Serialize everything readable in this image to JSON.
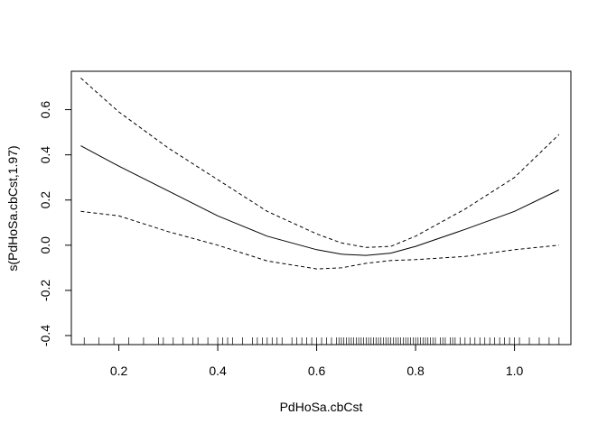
{
  "chart_data": {
    "type": "line",
    "title": "",
    "xlabel": "PdHoSa.cbCst",
    "ylabel": "s(PdHoSa.cbCst,1.97)",
    "xlim": [
      0.104,
      1.114
    ],
    "ylim": [
      -0.44,
      0.77
    ],
    "x_ticks": [
      0.2,
      0.4,
      0.6,
      0.8,
      1.0
    ],
    "x_tick_labels": [
      "0.2",
      "0.4",
      "0.6",
      "0.8",
      "1.0"
    ],
    "y_ticks": [
      -0.4,
      -0.2,
      0.0,
      0.2,
      0.4,
      0.6
    ],
    "y_tick_labels": [
      "-0.4",
      "-0.2",
      "0.0",
      "0.2",
      "0.4",
      "0.6"
    ],
    "grid": false,
    "legend": "none",
    "series": [
      {
        "style": "solid",
        "x": [
          0.123,
          0.2,
          0.3,
          0.4,
          0.5,
          0.6,
          0.65,
          0.7,
          0.75,
          0.8,
          0.9,
          1.0,
          1.09
        ],
        "y": [
          0.44,
          0.35,
          0.24,
          0.13,
          0.04,
          -0.02,
          -0.04,
          -0.045,
          -0.035,
          -0.005,
          0.07,
          0.15,
          0.245
        ]
      },
      {
        "style": "dashed",
        "x": [
          0.123,
          0.2,
          0.3,
          0.4,
          0.5,
          0.6,
          0.65,
          0.7,
          0.75,
          0.8,
          0.9,
          1.0,
          1.09
        ],
        "y": [
          0.74,
          0.59,
          0.43,
          0.29,
          0.15,
          0.05,
          0.01,
          -0.01,
          -0.005,
          0.04,
          0.16,
          0.3,
          0.49
        ]
      },
      {
        "style": "dashed",
        "x": [
          0.123,
          0.2,
          0.3,
          0.4,
          0.5,
          0.6,
          0.65,
          0.7,
          0.75,
          0.8,
          0.9,
          1.0,
          1.09
        ],
        "y": [
          0.15,
          0.13,
          0.06,
          0.0,
          -0.07,
          -0.105,
          -0.1,
          -0.08,
          -0.068,
          -0.064,
          -0.05,
          -0.02,
          0.0
        ]
      }
    ],
    "rug": [
      0.13,
      0.16,
      0.19,
      0.22,
      0.25,
      0.28,
      0.29,
      0.31,
      0.33,
      0.35,
      0.36,
      0.38,
      0.4,
      0.41,
      0.42,
      0.43,
      0.45,
      0.47,
      0.48,
      0.49,
      0.5,
      0.51,
      0.52,
      0.53,
      0.55,
      0.56,
      0.57,
      0.58,
      0.59,
      0.6,
      0.61,
      0.62,
      0.63,
      0.64,
      0.645,
      0.65,
      0.655,
      0.66,
      0.665,
      0.67,
      0.675,
      0.68,
      0.685,
      0.69,
      0.695,
      0.7,
      0.705,
      0.71,
      0.715,
      0.72,
      0.725,
      0.73,
      0.735,
      0.74,
      0.745,
      0.75,
      0.755,
      0.76,
      0.765,
      0.77,
      0.775,
      0.78,
      0.785,
      0.79,
      0.795,
      0.8,
      0.805,
      0.81,
      0.815,
      0.82,
      0.825,
      0.83,
      0.835,
      0.84,
      0.85,
      0.855,
      0.86,
      0.87,
      0.875,
      0.88,
      0.89,
      0.9,
      0.91,
      0.92,
      0.93,
      0.94,
      0.95,
      0.96,
      0.97,
      0.98,
      0.99,
      1.0,
      1.01,
      1.03,
      1.05,
      1.07,
      1.09
    ]
  }
}
